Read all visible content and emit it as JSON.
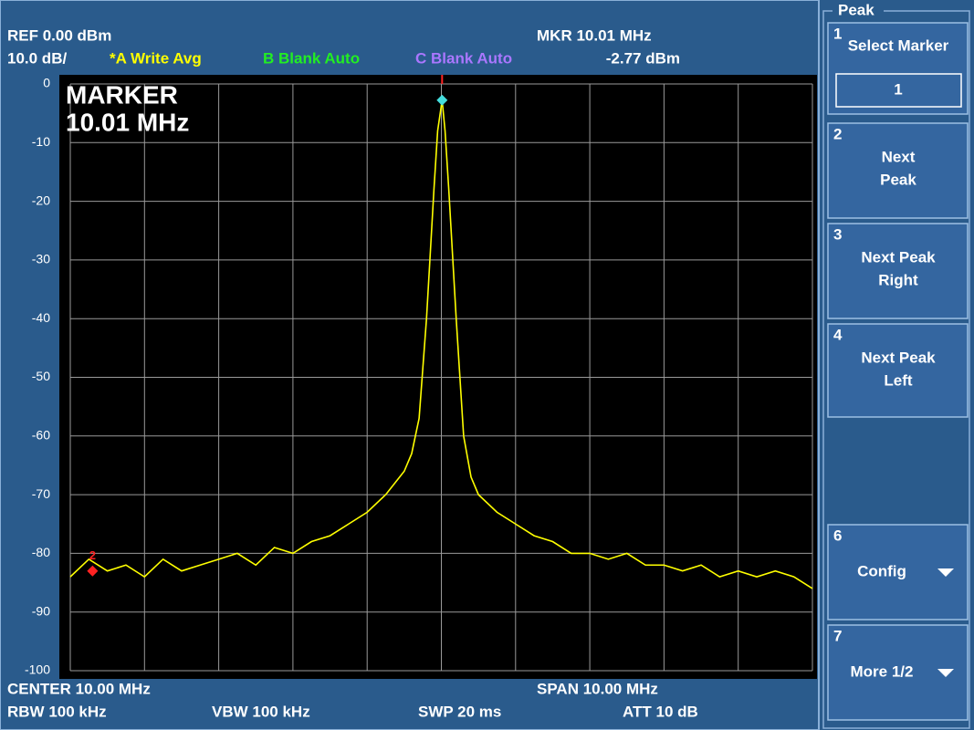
{
  "header": {
    "ref": "REF  0.00 dBm",
    "scale": "10.0 dB/",
    "trace_a": "*A Write Avg",
    "trace_b": "B Blank Auto",
    "trace_c": "C Blank Auto",
    "marker_freq": "MKR 10.01 MHz",
    "marker_level": "-2.77 dBm"
  },
  "chart_data": {
    "type": "line",
    "annotation": [
      "MARKER",
      "10.01 MHz"
    ],
    "x": [
      5.0,
      5.25,
      5.5,
      5.75,
      6.0,
      6.25,
      6.5,
      6.75,
      7.0,
      7.25,
      7.5,
      7.75,
      8.0,
      8.25,
      8.5,
      8.75,
      9.0,
      9.25,
      9.5,
      9.6,
      9.7,
      9.8,
      9.9,
      9.95,
      10.01,
      10.05,
      10.1,
      10.2,
      10.3,
      10.4,
      10.5,
      10.75,
      11.0,
      11.25,
      11.5,
      11.75,
      12.0,
      12.25,
      12.5,
      12.75,
      13.0,
      13.25,
      13.5,
      13.75,
      14.0,
      14.25,
      14.5,
      14.75,
      15.0
    ],
    "series": [
      {
        "color": "#ffff00",
        "values": [
          -84,
          -81,
          -83,
          -82,
          -84,
          -81,
          -83,
          -82,
          -81,
          -80,
          -82,
          -79,
          -80,
          -78,
          -77,
          -75,
          -73,
          -70,
          -66,
          -63,
          -57,
          -40,
          -18,
          -8,
          -2.77,
          -8,
          -18,
          -40,
          -60,
          -67,
          -70,
          -73,
          -75,
          -77,
          -78,
          -80,
          -80,
          -81,
          -80,
          -82,
          -82,
          -83,
          -82,
          -84,
          -83,
          -84,
          -83,
          -84,
          -86
        ]
      }
    ],
    "markers": [
      {
        "x": 10.01,
        "y": -2.77,
        "color": "#44dddd"
      },
      {
        "label": "2",
        "x": 5.3,
        "y": -83,
        "color": "#ff2222"
      }
    ],
    "xlim": [
      5,
      15
    ],
    "ylim": [
      -100,
      0
    ],
    "yticks": [
      0,
      -10,
      -20,
      -30,
      -40,
      -50,
      -60,
      -70,
      -80,
      -90,
      -100
    ],
    "grid": true
  },
  "footer": {
    "center": "CENTER 10.00 MHz",
    "span": "SPAN 10.00 MHz",
    "rbw": "RBW  100 kHz",
    "vbw": "VBW  100 kHz",
    "swp": "SWP  20 ms",
    "att": "ATT  10 dB"
  },
  "menu": {
    "title": "Peak",
    "buttons": [
      {
        "number": "1",
        "lines": [
          "Select Marker"
        ],
        "value": "1"
      },
      {
        "number": "2",
        "lines": [
          "Next",
          "Peak"
        ]
      },
      {
        "number": "3",
        "lines": [
          "Next Peak",
          "Right"
        ]
      },
      {
        "number": "4",
        "lines": [
          "Next Peak",
          "Left"
        ]
      },
      {
        "number": "6",
        "lines": [
          "Config"
        ]
      },
      {
        "number": "7",
        "lines": [
          "More 1/2"
        ]
      }
    ]
  }
}
